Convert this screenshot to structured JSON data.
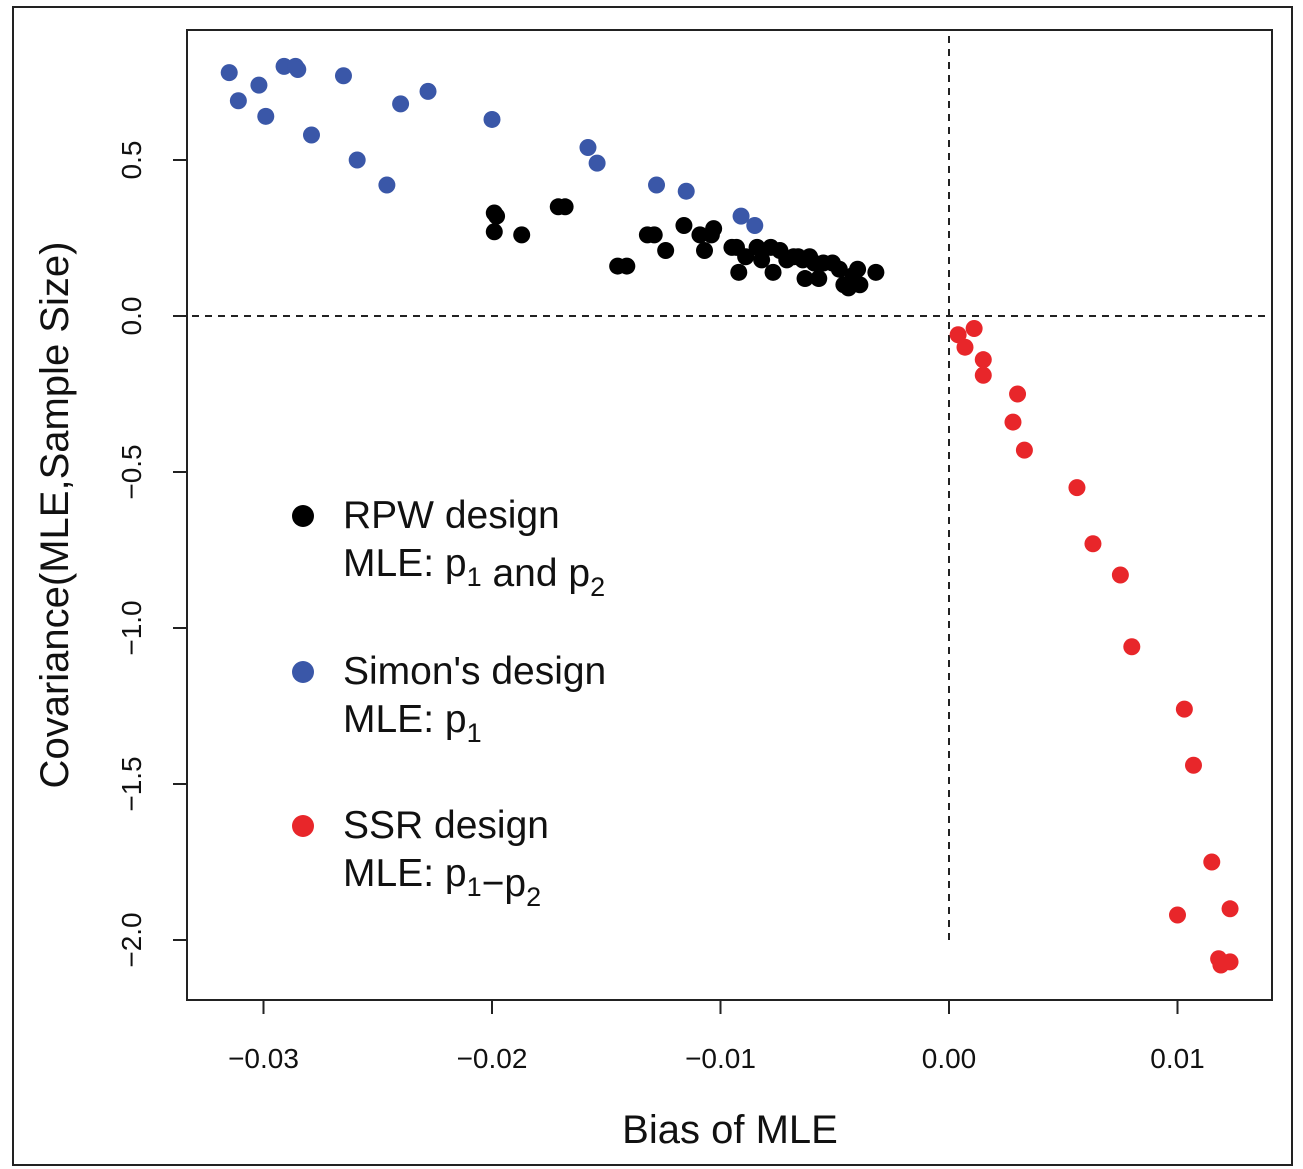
{
  "chart_data": {
    "type": "scatter",
    "xlabel": "Bias of MLE",
    "ylabel": "Covariance(MLE,Sample Size)",
    "xlim": [
      -0.0333,
      0.0141
    ],
    "ylim": [
      -2.2,
      0.92
    ],
    "x_ticks": [
      -0.03,
      -0.02,
      -0.01,
      0.0,
      0.01
    ],
    "x_tick_labels": [
      "−0.03",
      "−0.02",
      "−0.01",
      "0.00",
      "0.01"
    ],
    "y_ticks": [
      0.5,
      0.0,
      -0.5,
      -1.0,
      -1.5,
      -2.0
    ],
    "y_tick_labels": [
      "0.5",
      "0.0",
      "−0.5",
      "−1.0",
      "−1.5",
      "−2.0"
    ],
    "reference_lines": {
      "x": 0.0,
      "y": 0.0,
      "style": "dashed"
    },
    "grid": false,
    "legend_position": "left-middle",
    "series": [
      {
        "name": "RPW design",
        "subtitle": {
          "prefix": "MLE:  ",
          "parts": [
            [
              "p",
              "1"
            ],
            [
              " and "
            ],
            [
              "p",
              "2"
            ]
          ]
        },
        "color": "#000000",
        "points": [
          [
            -0.0199,
            0.33
          ],
          [
            -0.0198,
            0.32
          ],
          [
            -0.0199,
            0.27
          ],
          [
            -0.0187,
            0.26
          ],
          [
            -0.0171,
            0.35
          ],
          [
            -0.0168,
            0.35
          ],
          [
            -0.0145,
            0.16
          ],
          [
            -0.0141,
            0.16
          ],
          [
            -0.0132,
            0.26
          ],
          [
            -0.0129,
            0.26
          ],
          [
            -0.0124,
            0.21
          ],
          [
            -0.0116,
            0.29
          ],
          [
            -0.0109,
            0.26
          ],
          [
            -0.0107,
            0.21
          ],
          [
            -0.0104,
            0.26
          ],
          [
            -0.0103,
            0.28
          ],
          [
            -0.0095,
            0.22
          ],
          [
            -0.0093,
            0.22
          ],
          [
            -0.0092,
            0.14
          ],
          [
            -0.0089,
            0.19
          ],
          [
            -0.0084,
            0.22
          ],
          [
            -0.0082,
            0.18
          ],
          [
            -0.0078,
            0.22
          ],
          [
            -0.0077,
            0.14
          ],
          [
            -0.0074,
            0.21
          ],
          [
            -0.0071,
            0.18
          ],
          [
            -0.0068,
            0.19
          ],
          [
            -0.0066,
            0.19
          ],
          [
            -0.0064,
            0.18
          ],
          [
            -0.0063,
            0.12
          ],
          [
            -0.0061,
            0.19
          ],
          [
            -0.0059,
            0.17
          ],
          [
            -0.0057,
            0.12
          ],
          [
            -0.0055,
            0.17
          ],
          [
            -0.0051,
            0.17
          ],
          [
            -0.0048,
            0.15
          ],
          [
            -0.0046,
            0.1
          ],
          [
            -0.0044,
            0.09
          ],
          [
            -0.0042,
            0.13
          ],
          [
            -0.004,
            0.15
          ],
          [
            -0.0039,
            0.1
          ],
          [
            -0.0032,
            0.14
          ]
        ]
      },
      {
        "name": "Simon's design",
        "subtitle": {
          "prefix": "MLE:  ",
          "parts": [
            [
              "p",
              "1"
            ]
          ]
        },
        "color": "#3a57a8",
        "points": [
          [
            -0.0315,
            0.78
          ],
          [
            -0.0311,
            0.69
          ],
          [
            -0.0302,
            0.74
          ],
          [
            -0.0299,
            0.64
          ],
          [
            -0.0291,
            0.8
          ],
          [
            -0.0286,
            0.8
          ],
          [
            -0.0285,
            0.79
          ],
          [
            -0.0279,
            0.58
          ],
          [
            -0.0265,
            0.77
          ],
          [
            -0.0259,
            0.5
          ],
          [
            -0.0246,
            0.42
          ],
          [
            -0.024,
            0.68
          ],
          [
            -0.0228,
            0.72
          ],
          [
            -0.02,
            0.63
          ],
          [
            -0.0158,
            0.54
          ],
          [
            -0.0154,
            0.49
          ],
          [
            -0.0128,
            0.42
          ],
          [
            -0.0115,
            0.4
          ],
          [
            -0.0091,
            0.32
          ],
          [
            -0.0085,
            0.29
          ]
        ]
      },
      {
        "name": "SSR design",
        "subtitle": {
          "prefix": "MLE:  ",
          "parts": [
            [
              "p",
              "1"
            ],
            [
              "−"
            ],
            [
              "p",
              "2"
            ]
          ]
        },
        "color": "#e8262a",
        "points": [
          [
            0.0004,
            -0.06
          ],
          [
            0.0007,
            -0.1
          ],
          [
            0.0011,
            -0.04
          ],
          [
            0.0015,
            -0.14
          ],
          [
            0.0015,
            -0.19
          ],
          [
            0.003,
            -0.25
          ],
          [
            0.0028,
            -0.34
          ],
          [
            0.0033,
            -0.43
          ],
          [
            0.0056,
            -0.55
          ],
          [
            0.0063,
            -0.73
          ],
          [
            0.0075,
            -0.83
          ],
          [
            0.008,
            -1.06
          ],
          [
            0.0103,
            -1.26
          ],
          [
            0.0107,
            -1.44
          ],
          [
            0.0115,
            -1.75
          ],
          [
            0.0123,
            -1.9
          ],
          [
            0.01,
            -1.92
          ],
          [
            0.0118,
            -2.06
          ],
          [
            0.0119,
            -2.08
          ],
          [
            0.0123,
            -2.07
          ]
        ]
      }
    ]
  }
}
